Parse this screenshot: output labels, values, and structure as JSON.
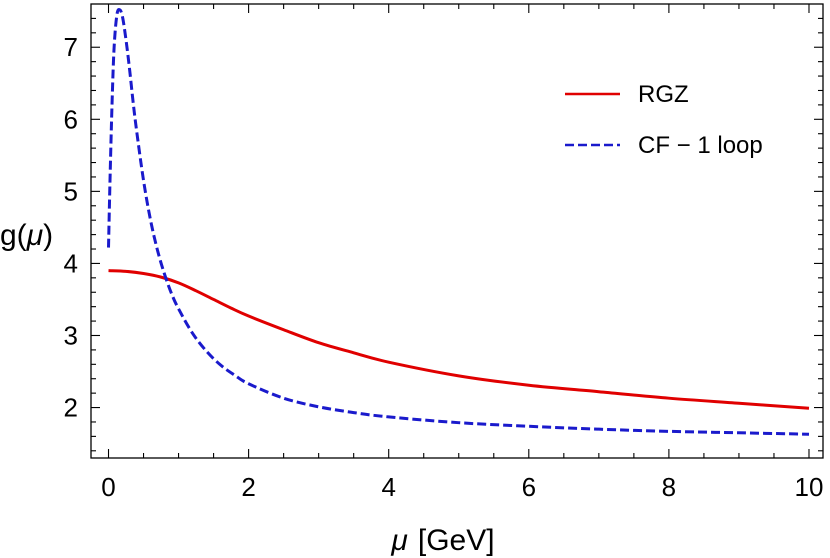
{
  "chart_data": {
    "type": "line",
    "xlabel_symbol": "μ",
    "xlabel_unit": "[GeV]",
    "ylabel_func": "g(",
    "ylabel_symbol": "μ",
    "ylabel_close": ")",
    "xlim": [
      -0.25,
      10.2
    ],
    "ylim": [
      1.3,
      7.6
    ],
    "x_ticks": [
      0,
      2,
      4,
      6,
      8,
      10
    ],
    "x_tick_labels": [
      "0",
      "2",
      "4",
      "6",
      "8",
      "10"
    ],
    "y_ticks": [
      2,
      3,
      4,
      5,
      6,
      7
    ],
    "y_tick_labels": [
      "2",
      "3",
      "4",
      "5",
      "6",
      "7"
    ],
    "grid": false,
    "frame": true,
    "legend_position": "top-right",
    "series": [
      {
        "name": "RGZ",
        "color": "#e00000",
        "dash": "solid",
        "x": [
          0,
          0.25,
          0.5,
          0.75,
          1,
          1.25,
          1.5,
          1.75,
          2,
          2.5,
          3,
          3.5,
          4,
          5,
          6,
          7,
          8,
          9,
          10
        ],
        "y": [
          3.9,
          3.89,
          3.86,
          3.81,
          3.73,
          3.62,
          3.5,
          3.38,
          3.27,
          3.08,
          2.9,
          2.76,
          2.63,
          2.44,
          2.31,
          2.22,
          2.13,
          2.06,
          1.99
        ]
      },
      {
        "name": "CF − 1 loop",
        "color": "#1a1acc",
        "dash": "dashed",
        "x": [
          0,
          0.02,
          0.05,
          0.08,
          0.12,
          0.16,
          0.2,
          0.25,
          0.3,
          0.35,
          0.4,
          0.5,
          0.6,
          0.7,
          0.8,
          0.9,
          1,
          1.2,
          1.4,
          1.6,
          1.8,
          2,
          2.5,
          3,
          3.5,
          4,
          5,
          6,
          7,
          8,
          9,
          10
        ],
        "y": [
          4.22,
          5.1,
          6.2,
          7.0,
          7.45,
          7.52,
          7.42,
          7.1,
          6.7,
          6.25,
          5.85,
          5.15,
          4.6,
          4.18,
          3.85,
          3.58,
          3.37,
          3.03,
          2.78,
          2.59,
          2.45,
          2.33,
          2.13,
          2.01,
          1.93,
          1.87,
          1.79,
          1.74,
          1.7,
          1.67,
          1.65,
          1.63
        ]
      }
    ]
  }
}
